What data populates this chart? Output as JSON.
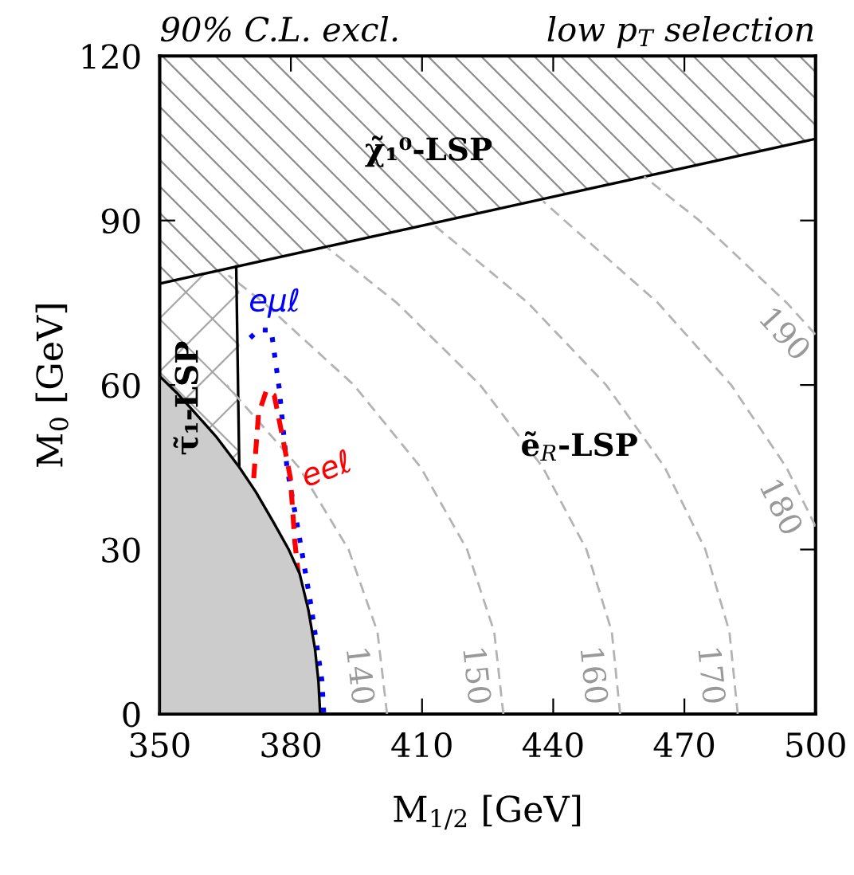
{
  "chart_data": {
    "type": "line",
    "title": "90% C.L. excl.",
    "subtitle": "low p$_{T}$ selection",
    "xlabel": "M$_{1/2}$ [GeV]",
    "ylabel": "M$_{0}$ [GeV]",
    "xlim": [
      350,
      500
    ],
    "ylim": [
      0,
      120
    ],
    "xticks": [
      350,
      380,
      410,
      440,
      470,
      500
    ],
    "yticks": [
      0,
      30,
      60,
      90,
      120
    ],
    "grid": false,
    "legend": false,
    "series": [
      {
        "color": "#000000",
        "line_style": "solid",
        "x": [
          350,
          500
        ],
        "values": [
          78.5,
          104.9
        ]
      },
      {
        "type": "area",
        "color": "#cccccc",
        "x": [
          350,
          354,
          358,
          363,
          368.2,
          372,
          376,
          379.5,
          382,
          384,
          385.5,
          386.3,
          386.7
        ],
        "values": [
          61.6,
          58.5,
          55,
          50.5,
          45,
          40.5,
          35,
          30,
          25.6,
          19,
          12,
          6,
          0
        ]
      },
      {
        "color": "#000000",
        "line_style": "solid",
        "x": [
          367.5,
          368.2
        ],
        "values": [
          81.6,
          45
        ]
      },
      {
        "name": "140",
        "color": "#b3b3b3",
        "line_style": "dashed",
        "x": [
          402.0,
          399.8,
          393.2,
          381.8,
          365.3
        ],
        "values": [
          0,
          15,
          30,
          45,
          60
        ]
      },
      {
        "name": "150",
        "color": "#b3b3b3",
        "line_style": "dashed",
        "x": [
          428.6,
          426.5,
          420.3,
          409.7,
          394.4,
          373.8,
          365.7
        ],
        "values": [
          0,
          15,
          30,
          45,
          60,
          75,
          80
        ]
      },
      {
        "name": "160",
        "color": "#b3b3b3",
        "line_style": "dashed",
        "x": [
          455.3,
          453.4,
          447.6,
          437.6,
          423.3,
          404.2,
          388.4
        ],
        "values": [
          0,
          15,
          30,
          45,
          60,
          75,
          85
        ]
      },
      {
        "name": "170",
        "color": "#b3b3b3",
        "line_style": "dashed",
        "x": [
          482.2,
          480.3,
          474.8,
          465.5,
          452.1,
          434.2,
          413.0
        ],
        "values": [
          0,
          15,
          30,
          45,
          60,
          75,
          89
        ]
      },
      {
        "name": "180",
        "color": "#b3b3b3",
        "line_style": "dashed",
        "x": [
          500,
          493.3,
          480.7,
          463.9,
          442.6,
          437.7
        ],
        "values": [
          34.2,
          45,
          60,
          75,
          90,
          93.5
        ]
      },
      {
        "name": "190",
        "color": "#b3b3b3",
        "line_style": "dashed",
        "x": [
          500,
          493.4,
          473.4,
          460.8
        ],
        "values": [
          69.2,
          75,
          90,
          98
        ]
      },
      {
        "name": "eμℓ",
        "color": "#0000ff",
        "line_style": "dotted",
        "x": [
          370.7,
          372.6,
          375.5,
          377.3,
          379.1,
          381.7,
          384.6,
          387.1,
          387.5
        ],
        "values": [
          68.6,
          70,
          70,
          59.6,
          45,
          33.4,
          19.8,
          6.1,
          0.3
        ]
      },
      {
        "name": "eeℓ",
        "color": "#ff0000",
        "line_style": "dashed",
        "x": [
          371.5,
          372.6,
          374.4,
          376.2,
          378,
          379.9,
          380.9,
          381.7
        ],
        "values": [
          43,
          54.7,
          59,
          58.1,
          50.9,
          43,
          31.4,
          25.6
        ]
      }
    ],
    "annotations": [
      "χ̃₁⁰-LSP",
      "τ̃₁-LSP",
      "ẽ$_{R}$-LSP"
    ]
  }
}
